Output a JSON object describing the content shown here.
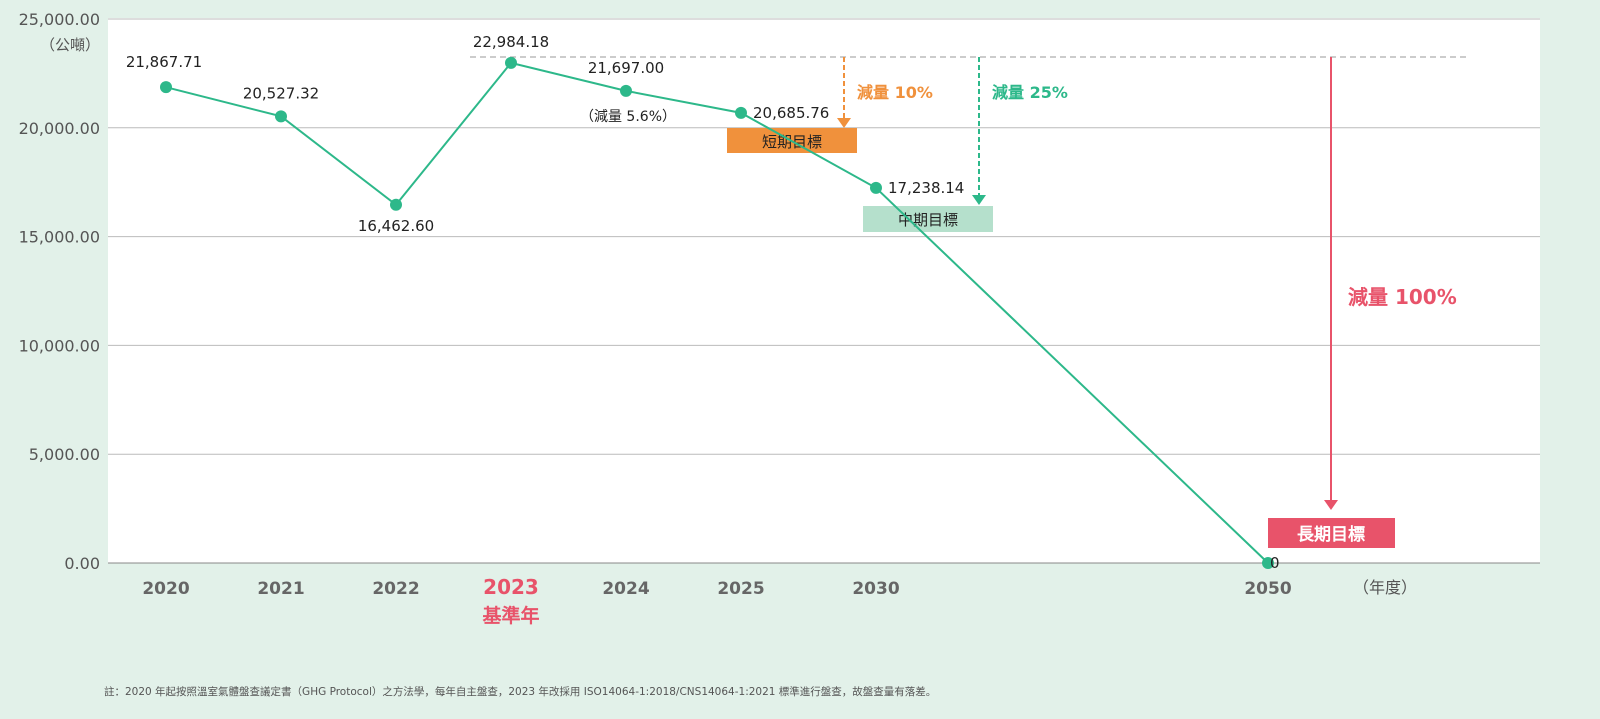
{
  "chart_data": {
    "type": "line",
    "ylabel": "（公噸）",
    "xlabel": "（年度）",
    "ylim": [
      0,
      25000
    ],
    "yticks": [
      "0.00",
      "5,000.00",
      "10,000.00",
      "15,000.00",
      "20,000.00",
      "25,000.00"
    ],
    "ytick_values": [
      0,
      5000,
      10000,
      15000,
      20000,
      25000
    ],
    "categories": [
      "2020",
      "2021",
      "2022",
      "2023",
      "2024",
      "2025",
      "2030",
      "2050"
    ],
    "values": [
      21867.71,
      20527.32,
      16462.6,
      22984.18,
      21697.0,
      20685.76,
      17238.14,
      0
    ],
    "value_labels": [
      "21,867.71",
      "20,527.32",
      "16,462.60",
      "22,984.18",
      "21,697.00",
      "20,685.76",
      "17,238.14",
      "0"
    ],
    "base_year_label": "基準年",
    "annotations": {
      "reduction_2024": "（減量 5.6%）",
      "short_term": {
        "label": "短期目標",
        "reduction": "減量 10%",
        "color": "#f0913c"
      },
      "mid_term": {
        "label": "中期目標",
        "reduction": "減量 25%",
        "color": "#2db88a",
        "box_color": "#b5e0cc"
      },
      "long_term": {
        "label": "長期目標",
        "reduction": "減量 100%",
        "color": "#e8536a"
      }
    },
    "series_color": "#2db88a",
    "grid": true
  },
  "footnote": "註：2020 年起按照溫室氣體盤查議定書（GHG Protocol）之方法學，每年自主盤查，2023 年改採用 ISO14064-1:2018/CNS14064-1:2021 標準進行盤查，故盤查量有落差。"
}
